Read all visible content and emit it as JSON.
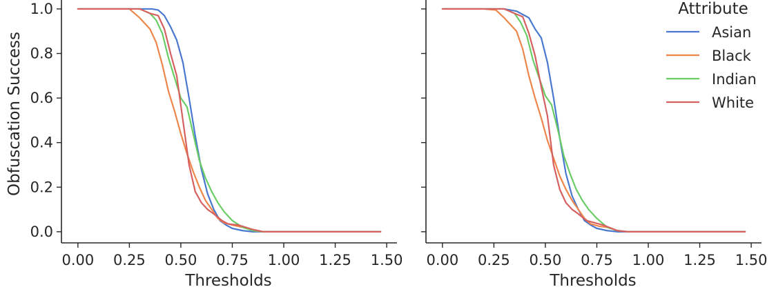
{
  "chart_data": [
    {
      "type": "line",
      "xlabel": "Thresholds",
      "ylabel": "Obfuscation Success",
      "xlim": [
        -0.08,
        1.55
      ],
      "ylim": [
        -0.05,
        1.04
      ],
      "xticks": [
        0.0,
        0.25,
        0.5,
        0.75,
        1.0,
        1.25,
        1.5
      ],
      "xtick_labels": [
        "0.00",
        "0.25",
        "0.50",
        "0.75",
        "1.00",
        "1.25",
        "1.50"
      ],
      "yticks": [
        0.0,
        0.2,
        0.4,
        0.6,
        0.8,
        1.0
      ],
      "ytick_labels": [
        "0.0",
        "0.2",
        "0.4",
        "0.6",
        "0.8",
        "1.0"
      ],
      "grid": false,
      "legend": null,
      "series": [
        {
          "name": "Asian",
          "color": "#4878d0",
          "x": [
            0.0,
            0.1,
            0.2,
            0.3,
            0.36,
            0.39,
            0.42,
            0.45,
            0.48,
            0.51,
            0.54,
            0.57,
            0.6,
            0.63,
            0.66,
            0.69,
            0.72,
            0.75,
            0.8,
            0.85,
            0.9,
            1.0,
            1.1,
            1.2,
            1.3,
            1.4,
            1.47
          ],
          "y": [
            1.0,
            1.0,
            1.0,
            1.0,
            1.0,
            0.995,
            0.97,
            0.92,
            0.86,
            0.76,
            0.6,
            0.43,
            0.28,
            0.17,
            0.1,
            0.05,
            0.03,
            0.015,
            0.005,
            0.0,
            0.0,
            0.0,
            0.0,
            0.0,
            0.0,
            0.0,
            0.0
          ]
        },
        {
          "name": "Black",
          "color": "#ee854a",
          "x": [
            0.0,
            0.1,
            0.2,
            0.25,
            0.3,
            0.35,
            0.38,
            0.41,
            0.44,
            0.47,
            0.5,
            0.53,
            0.56,
            0.59,
            0.62,
            0.65,
            0.68,
            0.71,
            0.75,
            0.8,
            0.85,
            0.9,
            1.0,
            1.1,
            1.2,
            1.3,
            1.4,
            1.47
          ],
          "y": [
            1.0,
            1.0,
            1.0,
            1.0,
            0.96,
            0.91,
            0.85,
            0.75,
            0.63,
            0.54,
            0.44,
            0.35,
            0.27,
            0.2,
            0.14,
            0.1,
            0.06,
            0.04,
            0.03,
            0.02,
            0.005,
            0.0,
            0.0,
            0.0,
            0.0,
            0.0,
            0.0,
            0.0
          ]
        },
        {
          "name": "Indian",
          "color": "#6acc64",
          "x": [
            0.0,
            0.1,
            0.2,
            0.3,
            0.35,
            0.38,
            0.41,
            0.44,
            0.47,
            0.5,
            0.53,
            0.56,
            0.59,
            0.62,
            0.65,
            0.68,
            0.71,
            0.75,
            0.8,
            0.85,
            0.9,
            1.0,
            1.1,
            1.2,
            1.3,
            1.4,
            1.47
          ],
          "y": [
            1.0,
            1.0,
            1.0,
            1.0,
            0.98,
            0.95,
            0.89,
            0.78,
            0.69,
            0.6,
            0.56,
            0.44,
            0.32,
            0.24,
            0.18,
            0.13,
            0.09,
            0.05,
            0.02,
            0.005,
            0.0,
            0.0,
            0.0,
            0.0,
            0.0,
            0.0,
            0.0
          ]
        },
        {
          "name": "White",
          "color": "#d65f5f",
          "x": [
            0.0,
            0.1,
            0.2,
            0.3,
            0.35,
            0.39,
            0.42,
            0.45,
            0.48,
            0.51,
            0.54,
            0.57,
            0.6,
            0.63,
            0.66,
            0.7,
            0.73,
            0.78,
            0.85,
            0.9,
            1.0,
            1.1,
            1.2,
            1.3,
            1.4,
            1.47
          ],
          "y": [
            1.0,
            1.0,
            1.0,
            1.0,
            0.98,
            0.97,
            0.91,
            0.8,
            0.7,
            0.5,
            0.3,
            0.18,
            0.13,
            0.1,
            0.08,
            0.05,
            0.035,
            0.03,
            0.01,
            0.0,
            0.0,
            0.0,
            0.0,
            0.0,
            0.0,
            0.0
          ]
        }
      ]
    },
    {
      "type": "line",
      "xlabel": "Thresholds",
      "ylabel": "",
      "xlim": [
        -0.08,
        1.55
      ],
      "ylim": [
        -0.05,
        1.04
      ],
      "xticks": [
        0.0,
        0.25,
        0.5,
        0.75,
        1.0,
        1.25,
        1.5
      ],
      "xtick_labels": [
        "0.00",
        "0.25",
        "0.50",
        "0.75",
        "1.00",
        "1.25",
        "1.50"
      ],
      "yticks": [
        0.0,
        0.2,
        0.4,
        0.6,
        0.8,
        1.0
      ],
      "ytick_labels": [
        "",
        "",
        "",
        "",
        "",
        ""
      ],
      "grid": false,
      "legend": {
        "title": "Attribute",
        "placement": "top-right"
      },
      "series": [
        {
          "name": "Asian",
          "color": "#4878d0",
          "x": [
            0.0,
            0.1,
            0.2,
            0.3,
            0.36,
            0.39,
            0.42,
            0.45,
            0.48,
            0.51,
            0.54,
            0.57,
            0.6,
            0.63,
            0.66,
            0.69,
            0.72,
            0.75,
            0.8,
            0.85,
            0.9,
            1.0,
            1.1,
            1.2,
            1.3,
            1.4,
            1.47
          ],
          "y": [
            1.0,
            1.0,
            1.0,
            1.0,
            0.99,
            0.975,
            0.96,
            0.91,
            0.87,
            0.76,
            0.6,
            0.42,
            0.26,
            0.16,
            0.1,
            0.05,
            0.03,
            0.015,
            0.005,
            0.0,
            0.0,
            0.0,
            0.0,
            0.0,
            0.0,
            0.0,
            0.0
          ]
        },
        {
          "name": "Black",
          "color": "#ee854a",
          "x": [
            0.0,
            0.1,
            0.2,
            0.26,
            0.3,
            0.36,
            0.39,
            0.42,
            0.45,
            0.48,
            0.51,
            0.54,
            0.57,
            0.6,
            0.63,
            0.66,
            0.69,
            0.72,
            0.76,
            0.8,
            0.85,
            0.9,
            1.0,
            1.1,
            1.2,
            1.3,
            1.4,
            1.47
          ],
          "y": [
            1.0,
            1.0,
            1.0,
            0.995,
            0.96,
            0.9,
            0.82,
            0.7,
            0.6,
            0.51,
            0.41,
            0.33,
            0.25,
            0.19,
            0.14,
            0.1,
            0.06,
            0.035,
            0.025,
            0.02,
            0.005,
            0.0,
            0.0,
            0.0,
            0.0,
            0.0,
            0.0,
            0.0
          ]
        },
        {
          "name": "Indian",
          "color": "#6acc64",
          "x": [
            0.0,
            0.1,
            0.2,
            0.3,
            0.35,
            0.38,
            0.41,
            0.44,
            0.47,
            0.5,
            0.53,
            0.56,
            0.59,
            0.62,
            0.65,
            0.68,
            0.71,
            0.75,
            0.8,
            0.85,
            0.9,
            1.0,
            1.1,
            1.2,
            1.3,
            1.4,
            1.47
          ],
          "y": [
            1.0,
            1.0,
            1.0,
            1.0,
            0.98,
            0.94,
            0.88,
            0.77,
            0.69,
            0.61,
            0.57,
            0.46,
            0.34,
            0.26,
            0.19,
            0.14,
            0.1,
            0.06,
            0.02,
            0.005,
            0.0,
            0.0,
            0.0,
            0.0,
            0.0,
            0.0,
            0.0
          ]
        },
        {
          "name": "White",
          "color": "#d65f5f",
          "x": [
            0.0,
            0.1,
            0.2,
            0.3,
            0.35,
            0.39,
            0.42,
            0.45,
            0.48,
            0.51,
            0.54,
            0.57,
            0.6,
            0.63,
            0.66,
            0.7,
            0.74,
            0.78,
            0.85,
            0.9,
            1.0,
            1.1,
            1.2,
            1.3,
            1.4,
            1.47
          ],
          "y": [
            1.0,
            1.0,
            1.0,
            1.0,
            0.98,
            0.965,
            0.89,
            0.79,
            0.65,
            0.52,
            0.3,
            0.19,
            0.13,
            0.1,
            0.08,
            0.05,
            0.04,
            0.03,
            0.005,
            0.0,
            0.0,
            0.0,
            0.0,
            0.0,
            0.0,
            0.0
          ]
        }
      ]
    }
  ]
}
